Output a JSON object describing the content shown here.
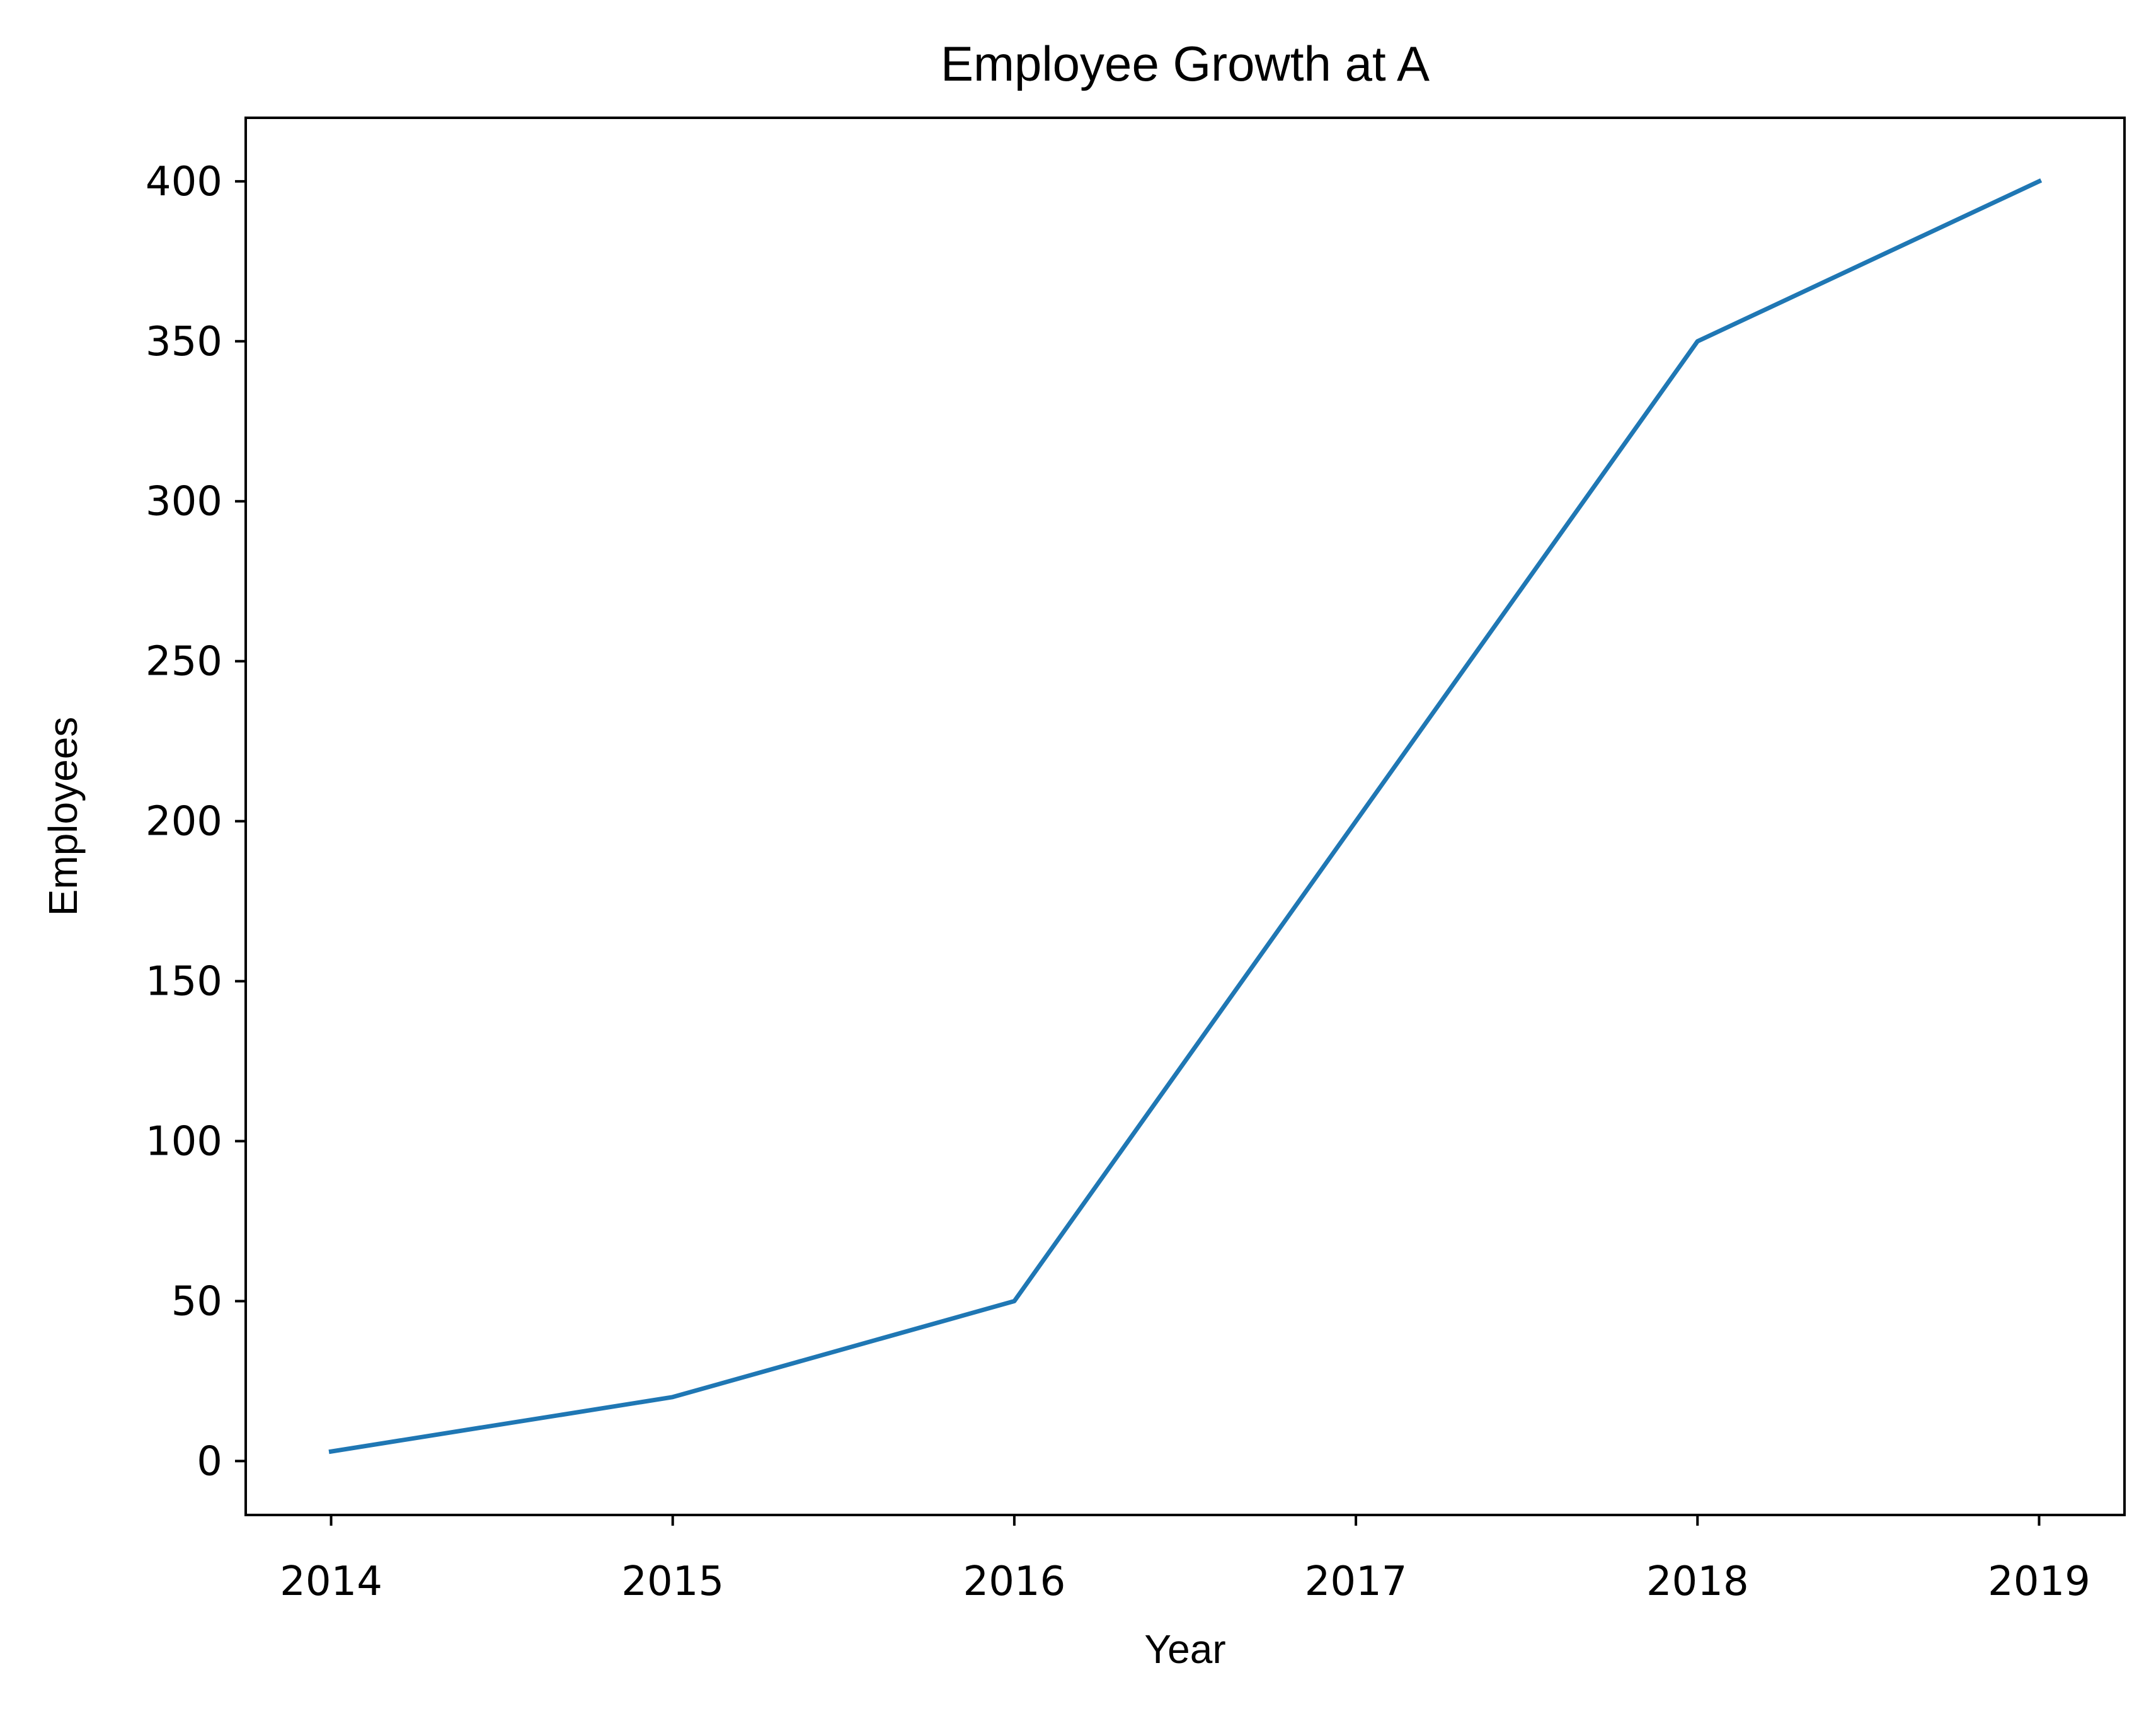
{
  "chart_data": {
    "type": "line",
    "title": "Employee Growth at A",
    "xlabel": "Year",
    "ylabel": "Employees",
    "x": [
      2014,
      2015,
      2016,
      2017,
      2018,
      2019
    ],
    "series": [
      {
        "values": [
          3,
          20,
          50,
          200,
          350,
          400
        ],
        "color": "#1f77b4"
      }
    ],
    "xticks": [
      "2014",
      "2015",
      "2016",
      "2017",
      "2018",
      "2019"
    ],
    "yticks": [
      "0",
      "50",
      "100",
      "150",
      "200",
      "250",
      "300",
      "350",
      "400"
    ],
    "xlim": [
      2013.75,
      2019.25
    ],
    "ylim": [
      -16.85,
      419.85
    ],
    "grid": false,
    "legend": "none"
  }
}
